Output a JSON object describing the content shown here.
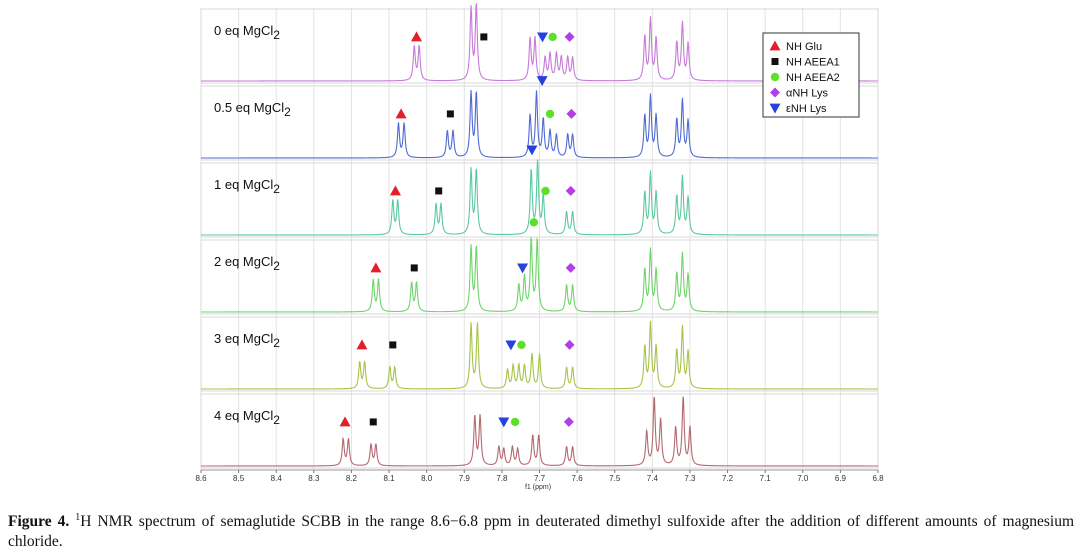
{
  "chart_data": {
    "type": "line",
    "title": "1H NMR spectra, 8.6–6.8 ppm",
    "xlabel": "f1 (ppm)",
    "xlim": [
      8.6,
      6.8
    ],
    "x_ticks": [
      "8.6",
      "8.5",
      "8.4",
      "8.3",
      "8.2",
      "8.1",
      "8.0",
      "7.9",
      "7.8",
      "7.7",
      "7.6",
      "7.5",
      "7.4",
      "7.3",
      "7.2",
      "7.1",
      "7.0",
      "6.9",
      "6.8"
    ],
    "legend": [
      {
        "label": "NH Glu",
        "marker": "triangle-up",
        "color": "#e3202a"
      },
      {
        "label": "NH AEEA1",
        "marker": "square",
        "color": "#111111"
      },
      {
        "label": "NH AEEA2",
        "marker": "circle",
        "color": "#5ee02a"
      },
      {
        "label": "αNH Lys",
        "marker": "diamond",
        "color": "#b13ee6"
      },
      {
        "label": "εNH Lys",
        "marker": "triangle-down",
        "color": "#2541e0"
      }
    ],
    "series": [
      {
        "name": "0 eq MgCl2",
        "label_main": "0 eq MgCl",
        "label_sub": "2",
        "color": "#c77ad9",
        "peaks": [
          [
            8.033,
            0.45
          ],
          [
            8.02,
            0.45
          ],
          [
            7.882,
            0.95
          ],
          [
            7.868,
            1.0
          ],
          [
            7.725,
            0.55
          ],
          [
            7.712,
            0.55
          ],
          [
            7.685,
            0.3
          ],
          [
            7.672,
            0.35
          ],
          [
            7.655,
            0.35
          ],
          [
            7.642,
            0.3
          ],
          [
            7.625,
            0.3
          ],
          [
            7.612,
            0.3
          ],
          [
            7.42,
            0.58
          ],
          [
            7.405,
            0.8
          ],
          [
            7.39,
            0.55
          ],
          [
            7.335,
            0.5
          ],
          [
            7.32,
            0.75
          ],
          [
            7.305,
            0.48
          ]
        ],
        "assignments": [
          {
            "label": "NH Glu",
            "ppm": 8.027,
            "h": 0.58
          },
          {
            "label": "NH AEEA1",
            "ppm": 7.848,
            "h": 0.58
          },
          {
            "label": "εNH Lys",
            "ppm": 7.692,
            "h": 0.58
          },
          {
            "label": "NH AEEA2",
            "ppm": 7.665,
            "h": 0.58
          },
          {
            "label": "αNH Lys",
            "ppm": 7.62,
            "h": 0.58
          }
        ]
      },
      {
        "name": "0.5 eq MgCl2",
        "label_main": "0.5 eq MgCl",
        "label_sub": "2",
        "color": "#4f6bd3",
        "peaks": [
          [
            8.075,
            0.45
          ],
          [
            8.06,
            0.45
          ],
          [
            7.945,
            0.35
          ],
          [
            7.93,
            0.35
          ],
          [
            7.882,
            0.85
          ],
          [
            7.868,
            0.85
          ],
          [
            7.725,
            0.55
          ],
          [
            7.708,
            0.85
          ],
          [
            7.69,
            0.5
          ],
          [
            7.672,
            0.35
          ],
          [
            7.655,
            0.3
          ],
          [
            7.625,
            0.3
          ],
          [
            7.612,
            0.3
          ],
          [
            7.42,
            0.55
          ],
          [
            7.405,
            0.8
          ],
          [
            7.39,
            0.55
          ],
          [
            7.335,
            0.5
          ],
          [
            7.32,
            0.75
          ],
          [
            7.305,
            0.48
          ]
        ],
        "assignments": [
          {
            "label": "NH Glu",
            "ppm": 8.068,
            "h": 0.58
          },
          {
            "label": "NH AEEA1",
            "ppm": 7.937,
            "h": 0.58
          },
          {
            "label": "εNH Lys",
            "ppm": 7.693,
            "h": 1.02
          },
          {
            "label": "NH AEEA2",
            "ppm": 7.672,
            "h": 0.58
          },
          {
            "label": "αNH Lys",
            "ppm": 7.615,
            "h": 0.58
          }
        ]
      },
      {
        "name": "1 eq MgCl2",
        "label_main": "1 eq MgCl",
        "label_sub": "2",
        "color": "#5bc99e",
        "peaks": [
          [
            8.09,
            0.45
          ],
          [
            8.077,
            0.45
          ],
          [
            7.975,
            0.4
          ],
          [
            7.962,
            0.4
          ],
          [
            7.882,
            0.85
          ],
          [
            7.868,
            0.85
          ],
          [
            7.722,
            0.85
          ],
          [
            7.705,
            0.95
          ],
          [
            7.69,
            0.5
          ],
          [
            7.628,
            0.3
          ],
          [
            7.612,
            0.3
          ],
          [
            7.42,
            0.55
          ],
          [
            7.405,
            0.8
          ],
          [
            7.39,
            0.55
          ],
          [
            7.335,
            0.5
          ],
          [
            7.32,
            0.75
          ],
          [
            7.305,
            0.48
          ]
        ],
        "assignments": [
          {
            "label": "NH Glu",
            "ppm": 8.083,
            "h": 0.58
          },
          {
            "label": "NH AEEA1",
            "ppm": 7.968,
            "h": 0.58
          },
          {
            "label": "εNH Lys",
            "ppm": 7.72,
            "h": 1.12
          },
          {
            "label": "NH AEEA2",
            "ppm": 7.684,
            "h": 0.58
          },
          {
            "label": "αNH Lys",
            "ppm": 7.617,
            "h": 0.58
          }
        ]
      },
      {
        "name": "2 eq MgCl2",
        "label_main": "2 eq MgCl",
        "label_sub": "2",
        "color": "#6fd46b",
        "peaks": [
          [
            8.142,
            0.42
          ],
          [
            8.128,
            0.42
          ],
          [
            8.04,
            0.38
          ],
          [
            8.027,
            0.38
          ],
          [
            7.882,
            0.85
          ],
          [
            7.868,
            0.85
          ],
          [
            7.755,
            0.35
          ],
          [
            7.74,
            0.45
          ],
          [
            7.722,
            0.95
          ],
          [
            7.706,
            0.95
          ],
          [
            7.628,
            0.35
          ],
          [
            7.612,
            0.35
          ],
          [
            7.42,
            0.55
          ],
          [
            7.405,
            0.8
          ],
          [
            7.39,
            0.55
          ],
          [
            7.335,
            0.5
          ],
          [
            7.32,
            0.75
          ],
          [
            7.305,
            0.48
          ]
        ],
        "assignments": [
          {
            "label": "NH Glu",
            "ppm": 8.135,
            "h": 0.58
          },
          {
            "label": "NH AEEA1",
            "ppm": 8.033,
            "h": 0.58
          },
          {
            "label": "NH AEEA2",
            "ppm": 7.715,
            "h": 1.18
          },
          {
            "label": "εNH Lys",
            "ppm": 7.745,
            "h": 0.58
          },
          {
            "label": "αNH Lys",
            "ppm": 7.617,
            "h": 0.58
          }
        ]
      },
      {
        "name": "3 eq MgCl2",
        "label_main": "3 eq MgCl",
        "label_sub": "2",
        "color": "#a8c349",
        "peaks": [
          [
            8.178,
            0.35
          ],
          [
            8.165,
            0.35
          ],
          [
            8.098,
            0.28
          ],
          [
            8.085,
            0.28
          ],
          [
            7.882,
            0.85
          ],
          [
            7.865,
            0.85
          ],
          [
            7.785,
            0.25
          ],
          [
            7.77,
            0.3
          ],
          [
            7.755,
            0.3
          ],
          [
            7.74,
            0.3
          ],
          [
            7.72,
            0.45
          ],
          [
            7.7,
            0.45
          ],
          [
            7.628,
            0.28
          ],
          [
            7.612,
            0.28
          ],
          [
            7.42,
            0.55
          ],
          [
            7.405,
            0.85
          ],
          [
            7.39,
            0.55
          ],
          [
            7.335,
            0.5
          ],
          [
            7.32,
            0.8
          ],
          [
            7.305,
            0.48
          ]
        ],
        "assignments": [
          {
            "label": "NH Glu",
            "ppm": 8.172,
            "h": 0.58
          },
          {
            "label": "NH AEEA1",
            "ppm": 8.09,
            "h": 0.58
          },
          {
            "label": "εNH Lys",
            "ppm": 7.776,
            "h": 0.58
          },
          {
            "label": "NH AEEA2",
            "ppm": 7.748,
            "h": 0.58
          },
          {
            "label": "αNH Lys",
            "ppm": 7.62,
            "h": 0.58
          }
        ]
      },
      {
        "name": "4 eq MgCl2",
        "label_main": "4 eq MgCl",
        "label_sub": "2",
        "color": "#b46870",
        "peaks": [
          [
            8.222,
            0.35
          ],
          [
            8.208,
            0.35
          ],
          [
            8.148,
            0.28
          ],
          [
            8.135,
            0.28
          ],
          [
            7.872,
            0.65
          ],
          [
            7.858,
            0.65
          ],
          [
            7.808,
            0.25
          ],
          [
            7.795,
            0.22
          ],
          [
            7.772,
            0.25
          ],
          [
            7.758,
            0.22
          ],
          [
            7.718,
            0.4
          ],
          [
            7.702,
            0.4
          ],
          [
            7.628,
            0.25
          ],
          [
            7.612,
            0.25
          ],
          [
            7.415,
            0.45
          ],
          [
            7.395,
            0.9
          ],
          [
            7.378,
            0.6
          ],
          [
            7.338,
            0.5
          ],
          [
            7.318,
            0.9
          ],
          [
            7.3,
            0.5
          ]
        ],
        "assignments": [
          {
            "label": "NH Glu",
            "ppm": 8.217,
            "h": 0.58
          },
          {
            "label": "NH AEEA1",
            "ppm": 8.142,
            "h": 0.58
          },
          {
            "label": "εNH Lys",
            "ppm": 7.795,
            "h": 0.58
          },
          {
            "label": "NH AEEA2",
            "ppm": 7.765,
            "h": 0.58
          },
          {
            "label": "αNH Lys",
            "ppm": 7.622,
            "h": 0.58
          }
        ]
      }
    ]
  },
  "caption": {
    "label": "Figure 4.",
    "sup": "1",
    "text": "H NMR spectrum of semaglutide SCBB in the range 8.6−6.8 ppm in deuterated dimethyl sulfoxide after the addition of different amounts of magnesium chloride."
  }
}
